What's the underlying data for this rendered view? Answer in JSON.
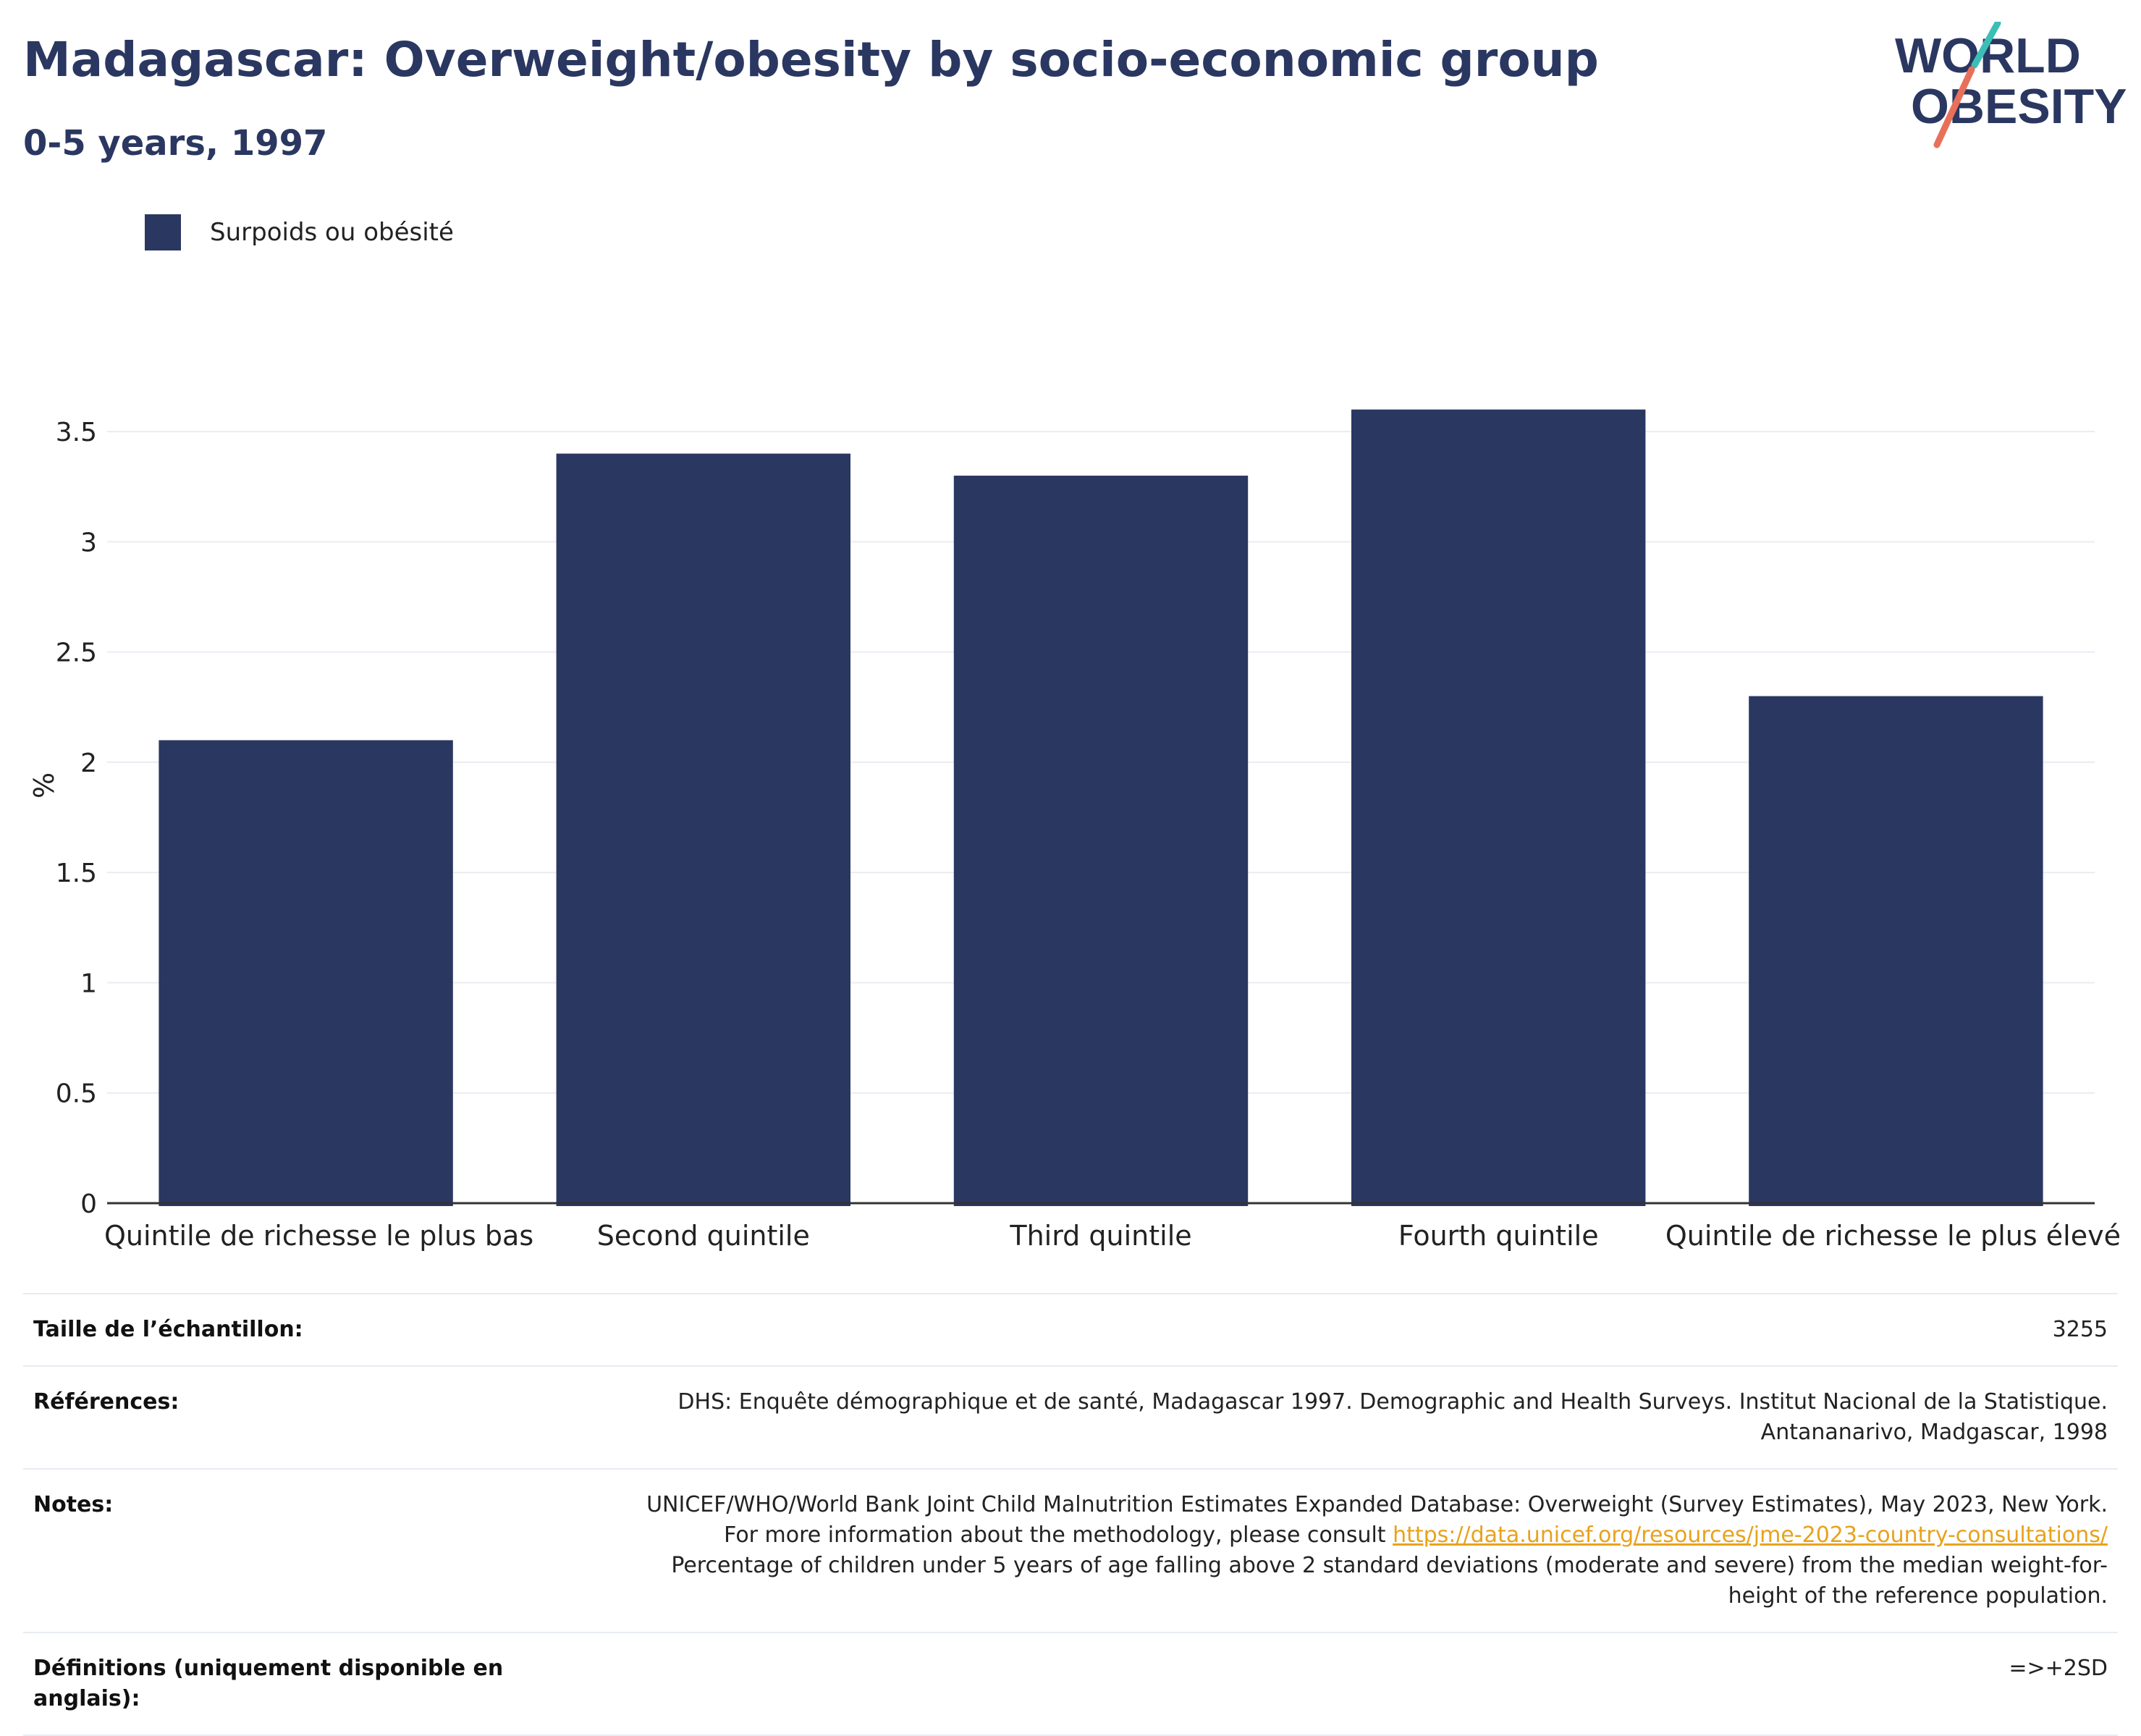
{
  "header": {
    "title": "Madagascar: Overweight/obesity by socio-economic group",
    "subtitle": "0-5 years, 1997"
  },
  "logo": {
    "line1": "WORLD",
    "line2": "OBESITY",
    "colors": {
      "text": "#2a3761",
      "slash_teal": "#3bbfb5",
      "slash_coral": "#e8705a"
    }
  },
  "legend": {
    "label": "Surpoids ou obésité"
  },
  "chart_data": {
    "type": "bar",
    "categories": [
      "Quintile de richesse le plus bas",
      "Second quintile",
      "Third quintile",
      "Fourth quintile",
      "Quintile de richesse le plus élevé"
    ],
    "series": [
      {
        "name": "Surpoids ou obésité",
        "values": [
          2.1,
          3.4,
          3.3,
          3.6,
          2.3
        ]
      }
    ],
    "ylabel": "%",
    "ylim": [
      0,
      3.75
    ],
    "yticks": [
      0,
      0.5,
      1,
      1.5,
      2,
      2.5,
      3,
      3.5
    ],
    "ytick_labels": [
      "0",
      "0.5",
      "1",
      "1.5",
      "2",
      "2.5",
      "3",
      "3.5"
    ],
    "grid": true,
    "legend_position": "top-left",
    "bar_color": "#2a3761"
  },
  "meta": {
    "sample_size": {
      "label": "Taille de l’échantillon:",
      "value": "3255"
    },
    "references": {
      "label": "Références:",
      "value": "DHS: Enquête démographique et de santé, Madagascar 1997. Demographic and Health Surveys. Institut Nacional de la Statistique. Antananarivo, Madgascar, 1998"
    },
    "notes": {
      "label": "Notes:",
      "text_before": "UNICEF/WHO/World Bank Joint Child Malnutrition Estimates Expanded Database: Overweight (Survey Estimates), May 2023, New York. For more information about the methodology, please consult ",
      "link": "https://data.unicef.org/resources/jme-2023-country-consultations/",
      "text_after": " Percentage of children under 5 years of age falling above 2 standard deviations (moderate and severe) from the median weight-for-height of the reference population."
    },
    "definitions": {
      "label": "Définitions (uniquement disponible en anglais):",
      "value": "=>+2SD"
    }
  }
}
